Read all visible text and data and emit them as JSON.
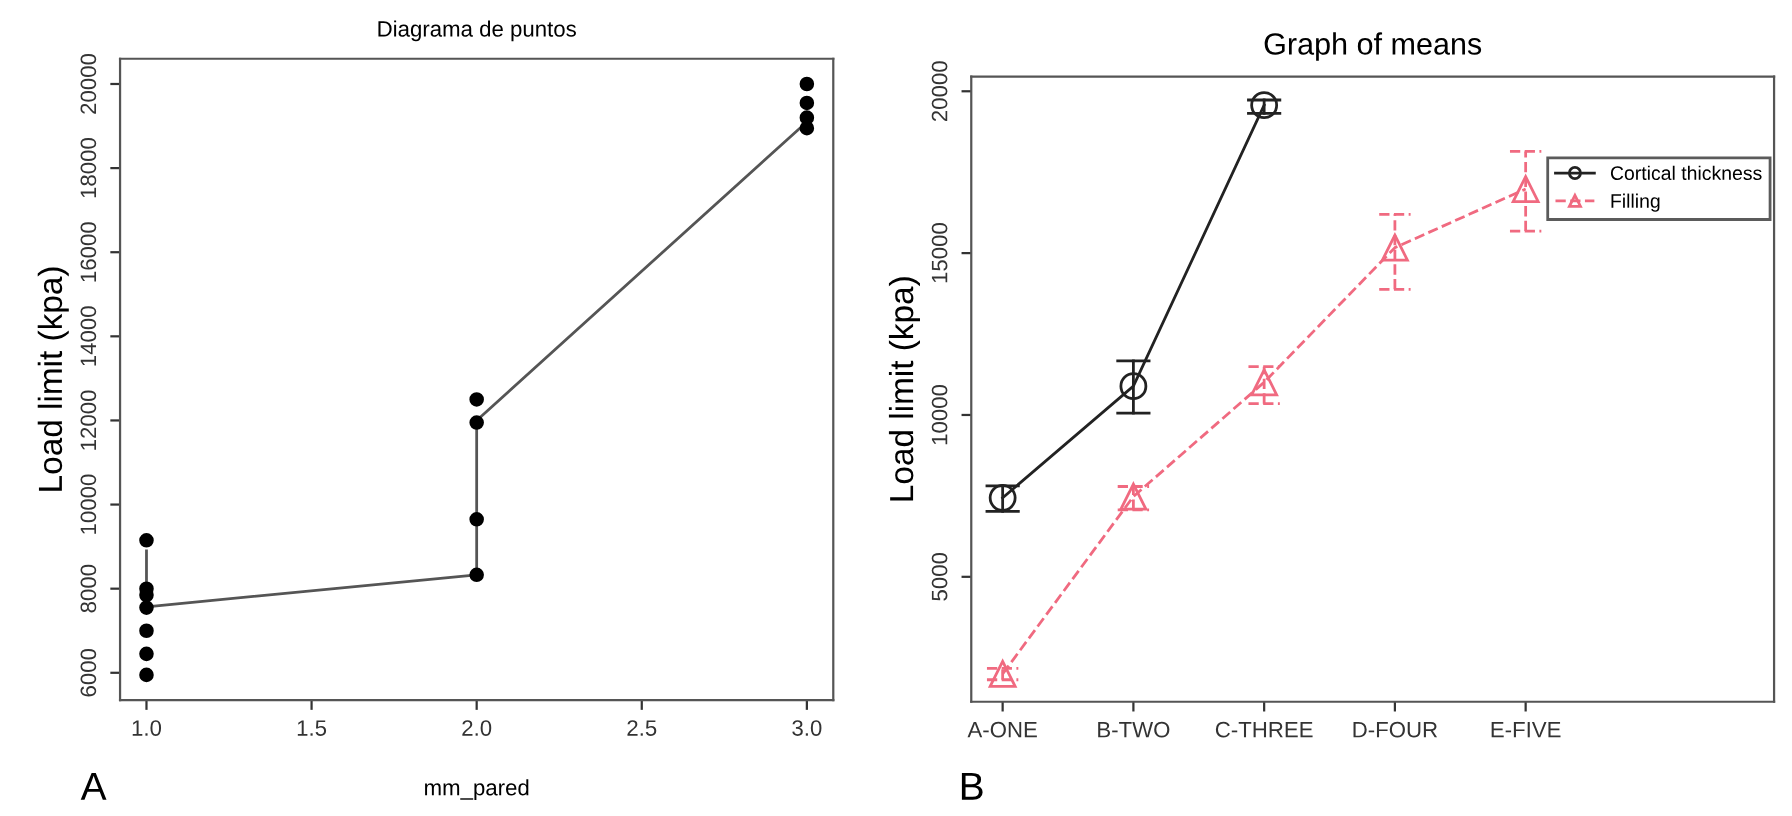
{
  "chart_data": [
    {
      "type": "scatter",
      "title": "Diagrama de puntos",
      "xlabel": "mm_pared",
      "ylabel": "Load limit (kpa)",
      "annotations": [
        "A"
      ],
      "xlim": [
        0.92,
        3.08
      ],
      "xticks": [
        {
          "value": 1,
          "label": "1.0"
        },
        {
          "value": 1.5,
          "label": "1.5"
        },
        {
          "value": 2,
          "label": "2.0"
        },
        {
          "value": 2.5,
          "label": "2.5"
        },
        {
          "value": 3,
          "label": "3.0"
        }
      ],
      "ylim": [
        5350,
        20600
      ],
      "yticks": [
        6000,
        8000,
        10000,
        12000,
        14000,
        16000,
        18000,
        20000
      ],
      "grid": false,
      "legend": false,
      "series": [
        {
          "type": "scatter",
          "color": "#000000",
          "marker": "circle",
          "x": [
            1,
            1,
            1,
            1,
            1,
            1,
            1,
            2,
            2,
            2,
            2,
            3,
            3,
            3,
            3
          ],
          "values": [
            9150,
            8000,
            7850,
            7550,
            7000,
            6450,
            5950,
            12500,
            11950,
            9650,
            8330,
            20000,
            19550,
            19200,
            18950
          ]
        },
        {
          "type": "line",
          "color": "#555555",
          "marker": "none",
          "line_style": "solid",
          "x": [
            1,
            1,
            2,
            2,
            3
          ],
          "values": [
            8900,
            7570,
            8330,
            12000,
            19100
          ]
        }
      ]
    },
    {
      "type": "line",
      "title": "Graph of means",
      "ylabel": "Load limit (kpa)",
      "annotations": [
        "B"
      ],
      "categories": [
        "A-ONE",
        "B-TWO",
        "C-THREE",
        "D-FOUR",
        "E-FIVE"
      ],
      "ylim": [
        1140,
        20450
      ],
      "yticks": [
        5000,
        10000,
        15000,
        20000
      ],
      "grid": false,
      "legend": "top right",
      "series": [
        {
          "name": "Cortical thickness",
          "color": "#222222",
          "marker": "circle",
          "line_style": "solid",
          "values": [
            7440,
            10890,
            19570,
            null,
            null
          ],
          "errors": [
            [
              7025,
              7810
            ],
            [
              10060,
              11670
            ],
            [
              19320,
              19730
            ],
            null,
            null
          ]
        },
        {
          "name": "Filling",
          "color": "#f06a80",
          "marker": "triangle",
          "line_style": "dashed",
          "values": [
            2000,
            7480,
            11010,
            15170,
            16980
          ],
          "errors": [
            [
              1820,
              2170
            ],
            [
              7070,
              7790
            ],
            [
              10350,
              11490
            ],
            [
              13880,
              16200
            ],
            [
              15680,
              18140
            ]
          ]
        }
      ]
    }
  ]
}
